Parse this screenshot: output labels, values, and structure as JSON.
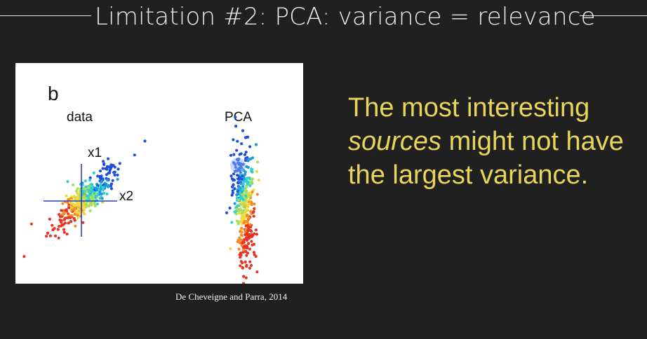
{
  "slide": {
    "title": "Limitation #2: PCA: variance = relevance",
    "caption": "De Cheveigne and Parra, 2014",
    "statement": {
      "line1": "The most interesting",
      "line2_em": "sources",
      "line2_rest": " might not have",
      "line3": "the largest variance."
    }
  },
  "figure": {
    "panel_letter": "b",
    "left_panel_label": "data",
    "right_panel_label": "PCA",
    "axis1_label": "x1",
    "axis2_label": "x2",
    "colormap": [
      "#1f4fd8",
      "#1e9be0",
      "#33d1c9",
      "#a6e05a",
      "#f5d83a",
      "#f58a2a",
      "#e8341f"
    ]
  },
  "colors": {
    "background": "#202020",
    "title_text": "#ececec",
    "statement_text": "#e8d55a"
  }
}
